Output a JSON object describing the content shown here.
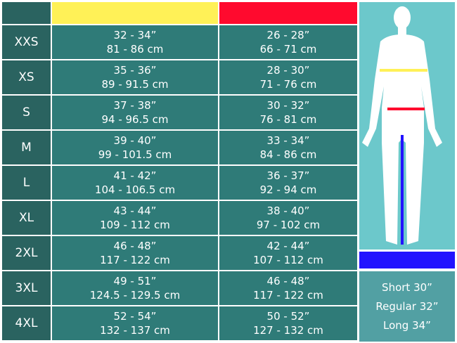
{
  "colors": {
    "chest": "#fff157",
    "waist": "#ff0a2e",
    "inseam": "#2213ff"
  },
  "rows": [
    {
      "size": "XXS",
      "chest_in": "32 - 34”",
      "chest_cm": "81 - 86 cm",
      "waist_in": "26 - 28”",
      "waist_cm": "66 - 71 cm"
    },
    {
      "size": "XS",
      "chest_in": "35 - 36”",
      "chest_cm": "89 - 91.5 cm",
      "waist_in": "28 - 30”",
      "waist_cm": "71 - 76 cm"
    },
    {
      "size": "S",
      "chest_in": "37 - 38”",
      "chest_cm": "94 - 96.5 cm",
      "waist_in": "30 - 32”",
      "waist_cm": "76 - 81 cm"
    },
    {
      "size": "M",
      "chest_in": "39 - 40”",
      "chest_cm": "99 - 101.5 cm",
      "waist_in": "33 - 34”",
      "waist_cm": "84 - 86 cm"
    },
    {
      "size": "L",
      "chest_in": "41 - 42”",
      "chest_cm": "104 - 106.5 cm",
      "waist_in": "36 - 37”",
      "waist_cm": "92 - 94 cm"
    },
    {
      "size": "XL",
      "chest_in": "43 - 44”",
      "chest_cm": "109 - 112 cm",
      "waist_in": "38 - 40”",
      "waist_cm": "97 - 102 cm"
    },
    {
      "size": "2XL",
      "chest_in": "46 - 48”",
      "chest_cm": "117 - 122 cm",
      "waist_in": "42 - 44”",
      "waist_cm": "107 - 112 cm"
    },
    {
      "size": "3XL",
      "chest_in": "49 - 51”",
      "chest_cm": "124.5 - 129.5 cm",
      "waist_in": "46 - 48”",
      "waist_cm": "117 - 122 cm"
    },
    {
      "size": "4XL",
      "chest_in": "52 - 54”",
      "chest_cm": "132 - 137 cm",
      "waist_in": "50 - 52”",
      "waist_cm": "127 - 132 cm"
    }
  ],
  "lengths": [
    "Short 30”",
    "Regular 32”",
    "Long 34”"
  ]
}
